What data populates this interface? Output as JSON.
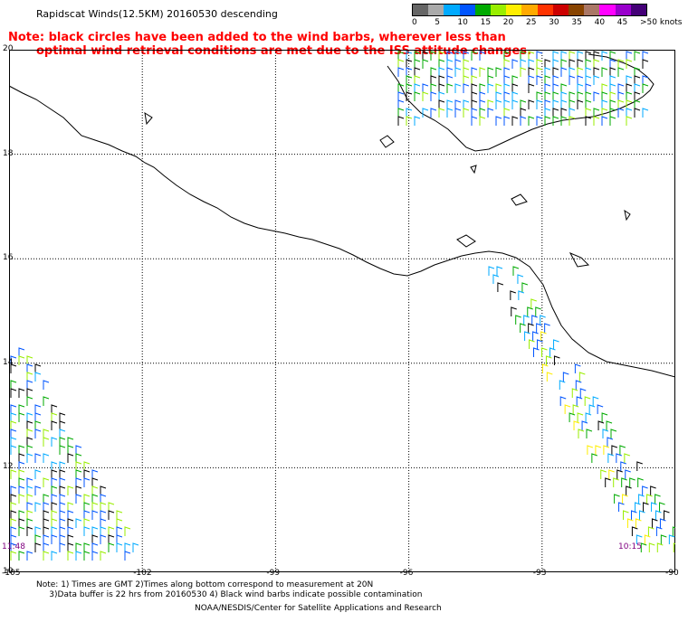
{
  "title": "Rapidscat Winds(12.5KM) 20160530 descending",
  "note_red": {
    "line1": "Note: black circles have been added to the wind barbs, wherever less than",
    "line2": "optimal wind retrieval conditions are met due to the ISS attitude changes."
  },
  "legend": {
    "colors": [
      "#666666",
      "#aaaaaa",
      "#00aaff",
      "#0055ff",
      "#00aa00",
      "#99ee00",
      "#ffee00",
      "#ffaa00",
      "#ff3300",
      "#cc0000",
      "#884400",
      "#aa7766",
      "#ff00ff",
      "#9900cc",
      "#440077"
    ],
    "labels": [
      "0",
      "5",
      "10",
      "15",
      "20",
      "25",
      "30",
      "35",
      "40",
      "45",
      ">50 knots"
    ]
  },
  "lat_labels": [
    "20",
    "18",
    "16",
    "14",
    "12",
    "10"
  ],
  "lon_labels": [
    "-105",
    "-102",
    "-99",
    "-96",
    "-93",
    "-90"
  ],
  "time_labels": {
    "left": "11:48",
    "right": "10:15"
  },
  "footer": {
    "line1": "Note: 1) Times are GMT 2)Times along bottom correspond to measurement at 20N",
    "line2": "     3)Data buffer is 22 hrs from 20160530 4) Black wind barbs indicate possible contamination",
    "credit": "NOAA/NESDIS/Center for Satellite Applications and Research"
  },
  "map_extent": {
    "lon_min": -105,
    "lon_max": -90,
    "lat_min": 10,
    "lat_max": 20
  }
}
